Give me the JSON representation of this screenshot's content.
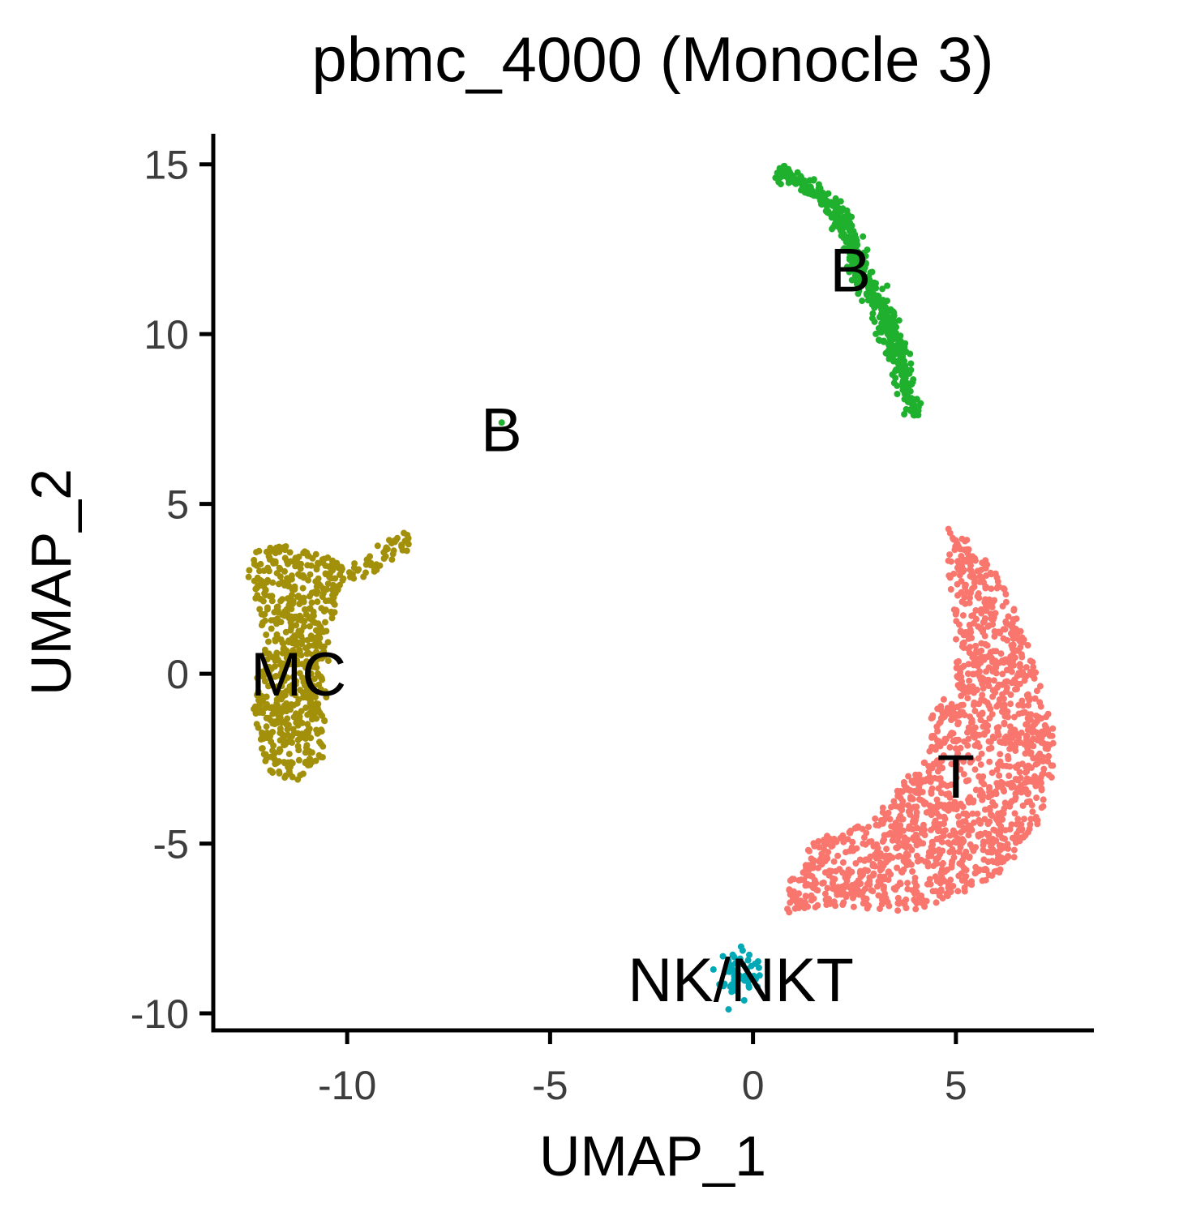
{
  "chart_data": {
    "type": "scatter",
    "title": "pbmc_4000 (Monocle 3)",
    "xlabel": "UMAP_1",
    "ylabel": "UMAP_2",
    "xlim": [
      -13.3,
      8.4
    ],
    "ylim": [
      -10.5,
      15.9
    ],
    "xticks": [
      {
        "value": -10,
        "label": "-10"
      },
      {
        "value": -5,
        "label": "-5"
      },
      {
        "value": 0,
        "label": "0"
      },
      {
        "value": 5,
        "label": "5"
      }
    ],
    "yticks": [
      {
        "value": -10,
        "label": "-10"
      },
      {
        "value": -5,
        "label": "-5"
      },
      {
        "value": 0,
        "label": "0"
      },
      {
        "value": 5,
        "label": "5"
      },
      {
        "value": 10,
        "label": "10"
      },
      {
        "value": 15,
        "label": "15"
      }
    ],
    "grid": false,
    "legend": "none",
    "clusters": [
      {
        "name": "T",
        "color": "#F8766D",
        "n_points": 1500,
        "outline": [
          [
            4.8,
            4.6
          ],
          [
            6.0,
            3.0
          ],
          [
            6.6,
            1.5
          ],
          [
            7.0,
            0.0
          ],
          [
            7.4,
            -1.5
          ],
          [
            7.4,
            -3.0
          ],
          [
            7.0,
            -4.5
          ],
          [
            6.2,
            -5.8
          ],
          [
            5.0,
            -6.6
          ],
          [
            3.8,
            -7.0
          ],
          [
            2.5,
            -6.9
          ],
          [
            1.2,
            -6.9
          ],
          [
            0.8,
            -7.2
          ],
          [
            0.9,
            -6.0
          ],
          [
            1.5,
            -4.9
          ],
          [
            2.8,
            -4.4
          ],
          [
            3.6,
            -3.4
          ],
          [
            4.4,
            -2.0
          ],
          [
            4.3,
            -1.3
          ],
          [
            5.0,
            -0.3
          ],
          [
            5.0,
            1.5
          ],
          [
            4.8,
            3.0
          ]
        ]
      },
      {
        "name": "B",
        "color": "#1FB02E",
        "n_points": 500,
        "path": [
          [
            0.6,
            14.8
          ],
          [
            1.4,
            14.3
          ],
          [
            2.2,
            13.5
          ],
          [
            2.6,
            12.0
          ],
          [
            3.1,
            10.8
          ],
          [
            3.6,
            9.3
          ],
          [
            4.0,
            7.6
          ]
        ],
        "width": 0.28
      },
      {
        "name": "MC",
        "color": "#A3900A",
        "n_points": 700,
        "outline": [
          [
            -12.4,
            3.7
          ],
          [
            -11.6,
            3.8
          ],
          [
            -10.7,
            3.5
          ],
          [
            -9.6,
            3.2
          ],
          [
            -9.3,
            3.8
          ],
          [
            -8.5,
            4.2
          ],
          [
            -8.3,
            3.8
          ],
          [
            -9.0,
            3.2
          ],
          [
            -10.1,
            2.5
          ],
          [
            -10.4,
            1.5
          ],
          [
            -10.5,
            -0.5
          ],
          [
            -10.6,
            -2.5
          ],
          [
            -11.3,
            -3.2
          ],
          [
            -11.9,
            -2.9
          ],
          [
            -12.3,
            -2.0
          ],
          [
            -12.3,
            -0.5
          ],
          [
            -12.0,
            1.0
          ],
          [
            -12.5,
            3.0
          ]
        ]
      },
      {
        "name": "NK/NKT",
        "color": "#00A9B5",
        "n_points": 70,
        "center": [
          -0.3,
          -8.9
        ],
        "spread": [
          0.25,
          0.35
        ]
      },
      {
        "name": "B",
        "color": "#1FB02E",
        "n_points": 1,
        "center": [
          -6.2,
          7.4
        ],
        "spread": [
          0.03,
          0.03
        ]
      }
    ],
    "annotations": [
      {
        "text": "B",
        "x": 2.4,
        "y": 11.9
      },
      {
        "text": "B",
        "x": -6.2,
        "y": 7.2
      },
      {
        "text": "MC",
        "x": -11.2,
        "y": 0.0
      },
      {
        "text": "T",
        "x": 5.0,
        "y": -3.0
      },
      {
        "text": "NK/NKT",
        "x": -0.3,
        "y": -9.0
      }
    ]
  }
}
